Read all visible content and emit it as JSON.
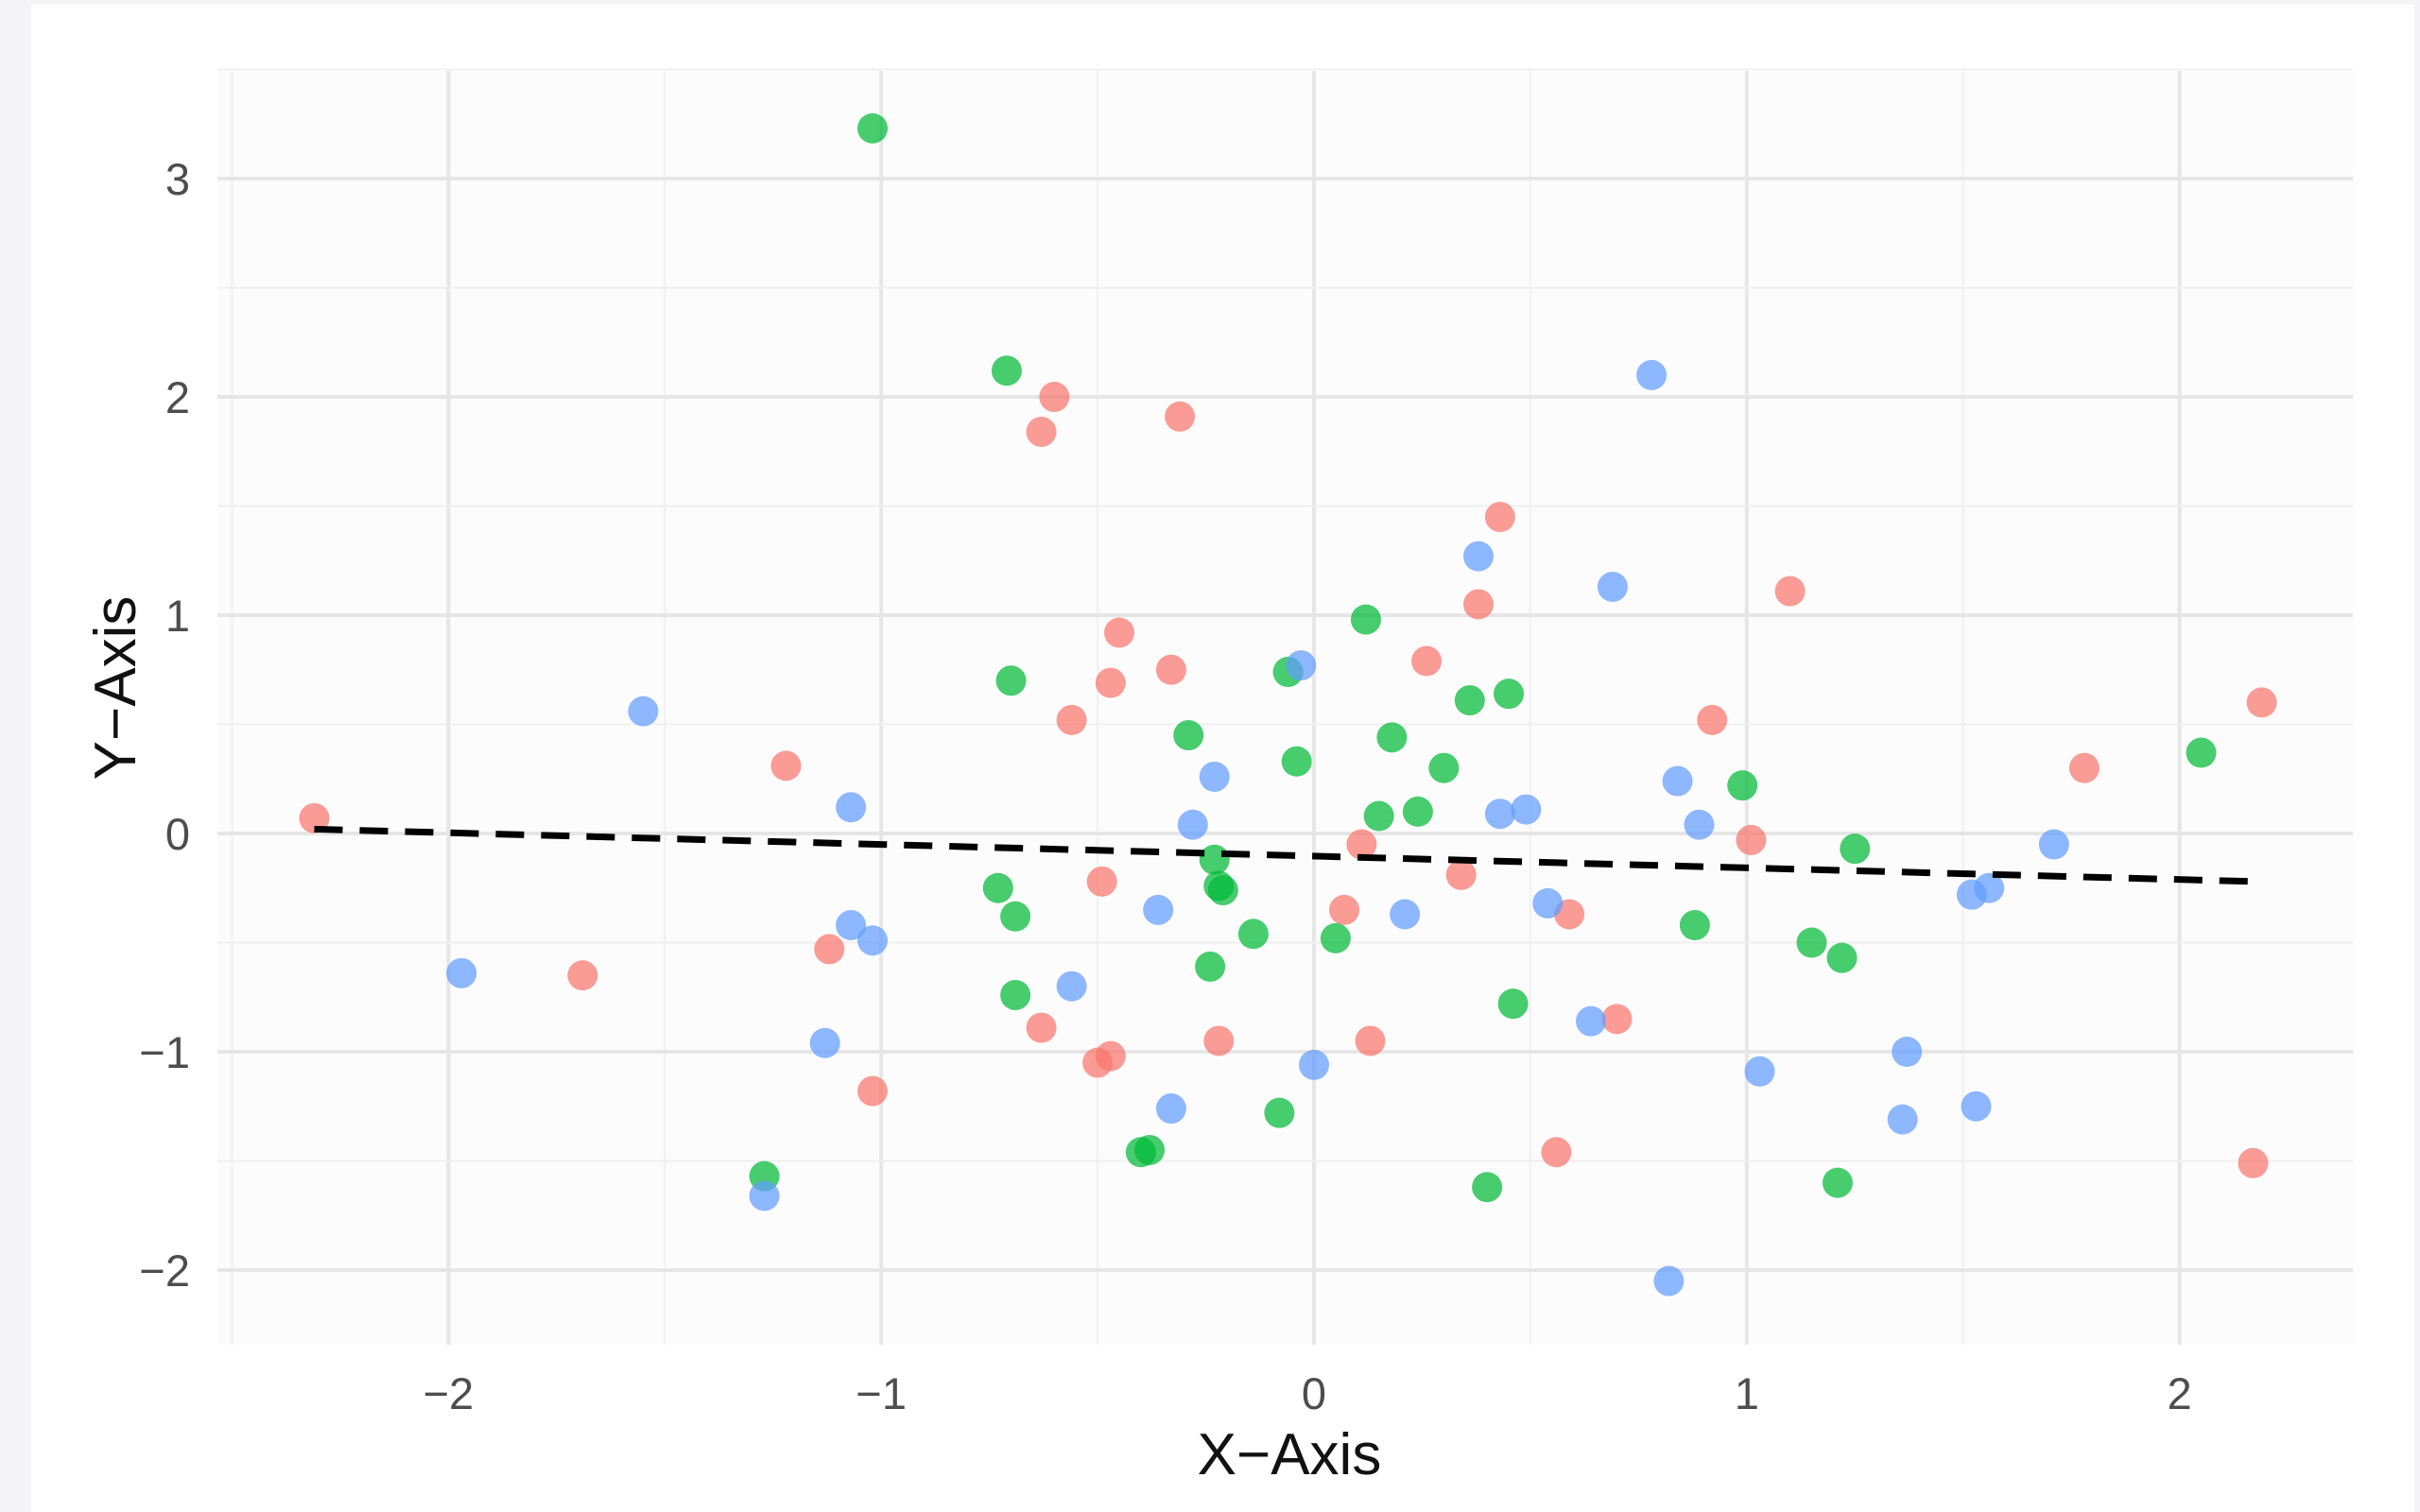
{
  "chart_data": {
    "type": "scatter",
    "xlabel": "X−Axis",
    "ylabel": "Y−Axis",
    "xlim": [
      -2.5,
      2.4
    ],
    "ylim": [
      -2.3,
      3.5
    ],
    "x_ticks": [
      -2,
      -1,
      0,
      1,
      2
    ],
    "x_tick_labels": [
      "−2",
      "−1",
      "0",
      "1",
      "2"
    ],
    "y_ticks": [
      -2,
      -1,
      0,
      1,
      2,
      3
    ],
    "y_tick_labels": [
      "−2",
      "−1",
      "0",
      "1",
      "2",
      "3"
    ],
    "grid": true,
    "legend": "none",
    "series": [
      {
        "color": "#f8766d",
        "points": [
          [
            -2.31,
            0.07
          ],
          [
            -1.22,
            0.31
          ],
          [
            -1.69,
            -0.65
          ],
          [
            -1.12,
            -0.53
          ],
          [
            -1.02,
            -1.18
          ],
          [
            -0.6,
            2.0
          ],
          [
            -0.63,
            1.84
          ],
          [
            -0.31,
            1.91
          ],
          [
            -0.45,
            0.92
          ],
          [
            -0.47,
            0.69
          ],
          [
            -0.33,
            0.75
          ],
          [
            -0.56,
            0.52
          ],
          [
            -0.49,
            -0.22
          ],
          [
            -0.63,
            -0.89
          ],
          [
            -0.5,
            -1.05
          ],
          [
            -0.47,
            -1.02
          ],
          [
            -0.22,
            -0.95
          ],
          [
            0.11,
            -0.05
          ],
          [
            0.07,
            -0.35
          ],
          [
            0.13,
            -0.95
          ],
          [
            0.26,
            0.79
          ],
          [
            0.34,
            -0.19
          ],
          [
            0.43,
            1.45
          ],
          [
            0.38,
            1.05
          ],
          [
            0.59,
            -0.37
          ],
          [
            0.7,
            -0.85
          ],
          [
            0.56,
            -1.46
          ],
          [
            0.92,
            0.52
          ],
          [
            1.01,
            -0.03
          ],
          [
            1.1,
            1.11
          ],
          [
            1.78,
            0.3
          ],
          [
            2.19,
            0.6
          ],
          [
            2.17,
            -1.51
          ]
        ]
      },
      {
        "color": "#00ba38",
        "points": [
          [
            -1.02,
            3.23
          ],
          [
            -0.71,
            2.12
          ],
          [
            -0.7,
            0.7
          ],
          [
            -0.73,
            -0.25
          ],
          [
            -0.69,
            -0.38
          ],
          [
            -0.69,
            -0.74
          ],
          [
            -1.27,
            -1.57
          ],
          [
            -0.29,
            0.45
          ],
          [
            -0.23,
            -0.12
          ],
          [
            -0.22,
            -0.24
          ],
          [
            -0.21,
            -0.26
          ],
          [
            -0.24,
            -0.61
          ],
          [
            -0.14,
            -0.46
          ],
          [
            -0.4,
            -1.46
          ],
          [
            -0.38,
            -1.45
          ],
          [
            -0.08,
            -1.28
          ],
          [
            -0.06,
            0.74
          ],
          [
            -0.04,
            0.33
          ],
          [
            0.12,
            0.98
          ],
          [
            0.18,
            0.44
          ],
          [
            0.15,
            0.08
          ],
          [
            0.24,
            0.1
          ],
          [
            0.3,
            0.3
          ],
          [
            0.36,
            0.61
          ],
          [
            0.45,
            0.64
          ],
          [
            0.05,
            -0.48
          ],
          [
            0.46,
            -0.78
          ],
          [
            0.4,
            -1.62
          ],
          [
            0.88,
            -0.42
          ],
          [
            0.99,
            0.22
          ],
          [
            1.25,
            -0.07
          ],
          [
            1.15,
            -0.5
          ],
          [
            1.22,
            -0.57
          ],
          [
            1.21,
            -1.6
          ],
          [
            2.05,
            0.37
          ]
        ]
      },
      {
        "color": "#619cff",
        "points": [
          [
            -1.55,
            0.56
          ],
          [
            -1.07,
            0.12
          ],
          [
            -1.07,
            -0.42
          ],
          [
            -1.02,
            -0.49
          ],
          [
            -1.13,
            -0.96
          ],
          [
            -1.97,
            -0.64
          ],
          [
            -1.27,
            -1.66
          ],
          [
            -0.56,
            -0.7
          ],
          [
            -0.36,
            -0.35
          ],
          [
            -0.33,
            -1.26
          ],
          [
            -0.28,
            0.04
          ],
          [
            -0.23,
            0.26
          ],
          [
            -0.03,
            0.77
          ],
          [
            0.0,
            -1.06
          ],
          [
            0.21,
            -0.37
          ],
          [
            0.38,
            1.27
          ],
          [
            0.43,
            0.09
          ],
          [
            0.49,
            0.11
          ],
          [
            0.54,
            -0.32
          ],
          [
            0.64,
            -0.86
          ],
          [
            0.69,
            1.13
          ],
          [
            0.78,
            2.1
          ],
          [
            0.84,
            0.24
          ],
          [
            0.89,
            0.04
          ],
          [
            0.82,
            -2.05
          ],
          [
            1.03,
            -1.09
          ],
          [
            1.37,
            -1.0
          ],
          [
            1.36,
            -1.31
          ],
          [
            1.52,
            -0.28
          ],
          [
            1.56,
            -0.25
          ],
          [
            1.53,
            -1.25
          ],
          [
            1.71,
            -0.05
          ]
        ]
      }
    ],
    "trend_line": {
      "x": [
        -2.31,
        2.17
      ],
      "y": [
        0.02,
        -0.22
      ],
      "color": "#000000",
      "style": "dashed"
    }
  }
}
